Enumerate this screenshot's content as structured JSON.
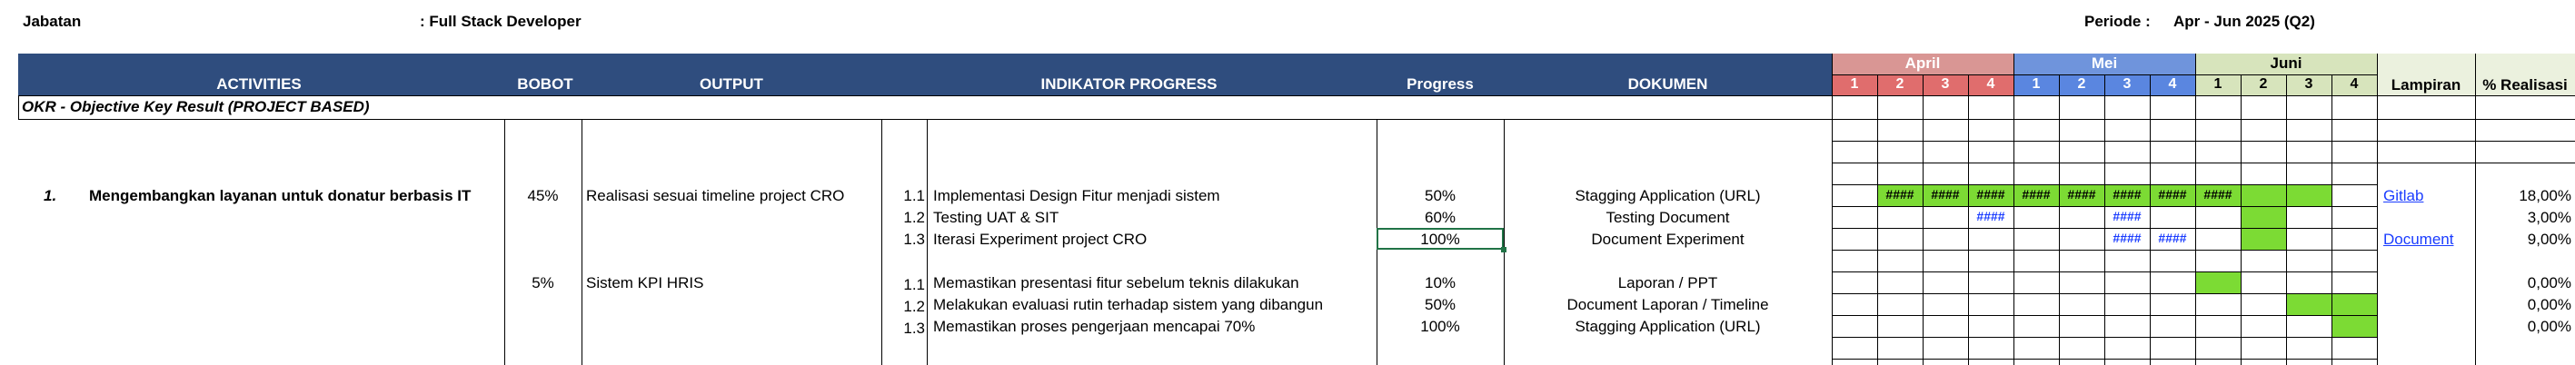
{
  "header": {
    "jabatan_label": "Jabatan",
    "jabatan_value": ": Full Stack Developer",
    "periode_label": "Periode :",
    "periode_value": "Apr - Jun 2025 (Q2)"
  },
  "columns": {
    "activities": "ACTIVITIES",
    "bobot": "BOBOT",
    "output": "OUTPUT",
    "indikator": "INDIKATOR PROGRESS",
    "progress": "Progress",
    "dokumen": "DOKUMEN",
    "lampiran": "Lampiran",
    "realisasi": "% Realisasi"
  },
  "months": [
    {
      "name": "April",
      "color": "#d99694"
    },
    {
      "name": "Mei",
      "color": "#6f94dc"
    },
    {
      "name": "Juni",
      "color": "#d7e4bc"
    }
  ],
  "week_numbers": [
    "1",
    "2",
    "3",
    "4",
    "1",
    "2",
    "3",
    "4",
    "1",
    "2",
    "3",
    "4"
  ],
  "section_title": "OKR - Objective Key Result (PROJECT BASED)",
  "objective": {
    "number": "1.",
    "title": "Mengembangkan layanan untuk donatur berbasis IT"
  },
  "groups": [
    {
      "bobot": "45%",
      "output": "Realisasi sesuai timeline project CRO",
      "indicators": [
        {
          "no": "1.1",
          "text": "Implementasi Design Fitur menjadi sistem",
          "progress": "50%",
          "dokumen": "Stagging Application (URL)",
          "lampiran": "Gitlab",
          "realisasi": "18,00%"
        },
        {
          "no": "1.2",
          "text": "Testing UAT & SIT",
          "progress": "60%",
          "dokumen": "Testing Document",
          "lampiran": "",
          "realisasi": "3,00%"
        },
        {
          "no": "1.3",
          "text": "Iterasi Experiment project CRO",
          "progress": "100%",
          "dokumen": "Document Experiment",
          "lampiran": "Document",
          "realisasi": "9,00%"
        }
      ]
    },
    {
      "bobot": "5%",
      "output": "Sistem KPI HRIS",
      "indicators": [
        {
          "no": "1.1",
          "text": "Memastikan presentasi fitur sebelum teknis dilakukan",
          "progress": "10%",
          "dokumen": "Laporan / PPT",
          "lampiran": "",
          "realisasi": "0,00%"
        },
        {
          "no": "1.2",
          "text": "Melakukan evaluasi rutin terhadap sistem yang dibangun",
          "progress": "50%",
          "dokumen": "Document Laporan / Timeline",
          "lampiran": "",
          "realisasi": "0,00%"
        },
        {
          "no": "1.3",
          "text": "Memastikan proses pengerjaan mencapai 70%",
          "progress": "100%",
          "dokumen": "Stagging Application (URL)",
          "lampiran": "",
          "realisasi": "0,00%"
        }
      ]
    }
  ],
  "hash_text": "####",
  "colors": {
    "header_bg": "#2f4d7e",
    "april": "#d99694",
    "mei": "#6f94dc",
    "juni": "#d7e4bc",
    "week_num_bg": "#e06d6d",
    "gantt_green": "#7cdb34",
    "link": "#1a3cff"
  }
}
